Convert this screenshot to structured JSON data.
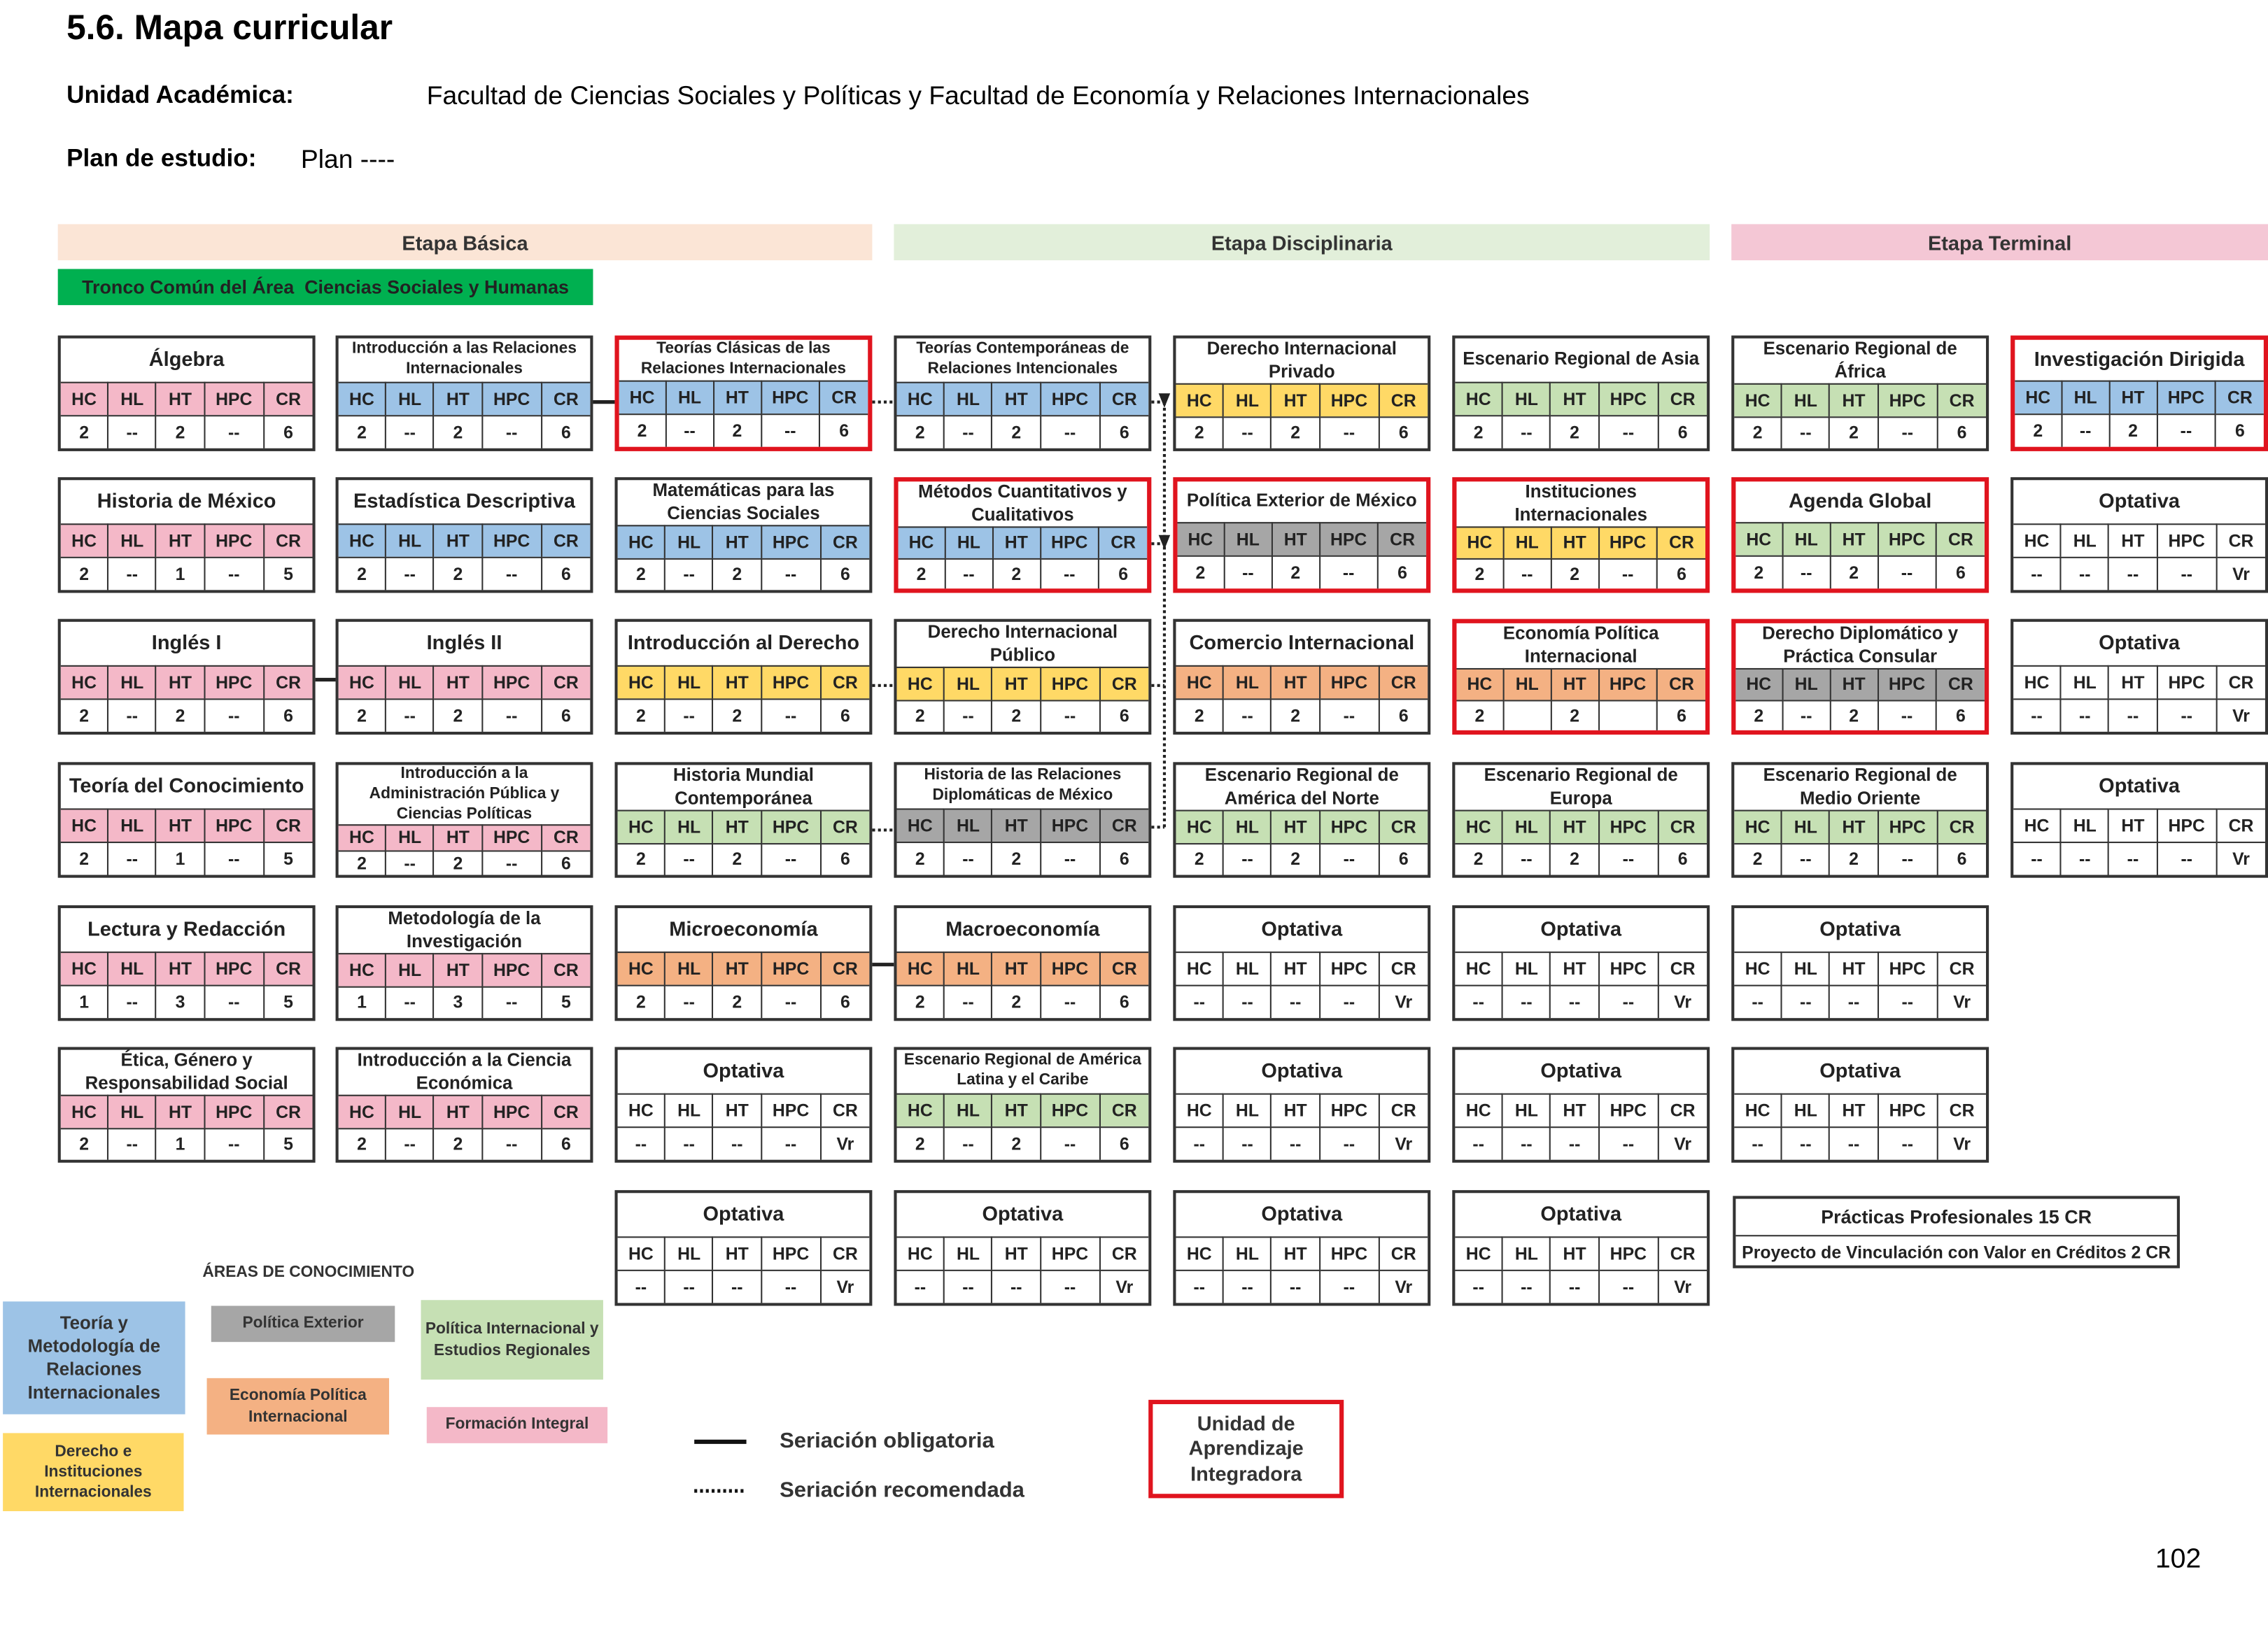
{
  "header": {
    "title": "5.6. Mapa curricular",
    "unit_label": "Unidad Académica:",
    "unit": "Facultad de Ciencias Sociales y Políticas y Facultad de Economía y Relaciones Internacionales",
    "plan_label": "Plan de estudio:",
    "plan": "Plan ----"
  },
  "stages": [
    "Etapa Básica",
    "Etapa Disciplinaria",
    "Etapa Terminal"
  ],
  "common_trunk": "Tronco Común del Área  Ciencias Sociales y Humanas",
  "hour_labels": [
    "HC",
    "HL",
    "HT",
    "HPC",
    "CR"
  ],
  "columns": [
    [
      {
        "name": "Álgebra",
        "color": "#f4b8c8",
        "values": [
          2,
          "--",
          2,
          "--",
          6
        ]
      },
      {
        "name": "Historia de México",
        "color": "#f4b8c8",
        "values": [
          2,
          "--",
          1,
          "--",
          5
        ]
      },
      {
        "name": "Inglés I",
        "color": "#f4b8c8",
        "values": [
          2,
          "--",
          2,
          "--",
          6
        ]
      },
      {
        "name": "Teoría del Conocimiento",
        "color": "#f4b8c8",
        "values": [
          2,
          "--",
          1,
          "--",
          5
        ]
      },
      {
        "name": "Lectura y Redacción",
        "color": "#f4b8c8",
        "values": [
          1,
          "--",
          3,
          "--",
          5
        ]
      },
      {
        "name": "Ética, Género y Responsabilidad Social",
        "color": "#f4b8c8",
        "values": [
          2,
          "--",
          1,
          "--",
          5
        ]
      }
    ],
    [
      {
        "name": "Introducción a las Relaciones Internacionales",
        "color": "#9dc3e6",
        "values": [
          2,
          "--",
          2,
          "--",
          6
        ]
      },
      {
        "name": "Estadística Descriptiva",
        "color": "#9dc3e6",
        "values": [
          2,
          "--",
          2,
          "--",
          6
        ]
      },
      {
        "name": "Inglés II",
        "color": "#f4b8c8",
        "values": [
          2,
          "--",
          2,
          "--",
          6
        ]
      },
      {
        "name": "Introducción a la Administración Pública y Ciencias Políticas",
        "color": "#f4b8c8",
        "values": [
          2,
          "--",
          2,
          "--",
          6
        ]
      },
      {
        "name": "Metodología de la Investigación",
        "color": "#f4b8c8",
        "values": [
          1,
          "--",
          3,
          "--",
          5
        ]
      },
      {
        "name": "Introducción a la Ciencia Económica",
        "color": "#f4b8c8",
        "values": [
          2,
          "--",
          2,
          "--",
          6
        ]
      }
    ],
    [
      {
        "name": "Teorías Clásicas de las Relaciones Internacionales",
        "color": "#9dc3e6",
        "integrator": true,
        "values": [
          2,
          "--",
          2,
          "--",
          6
        ]
      },
      {
        "name": "Matemáticas para las Ciencias Sociales",
        "color": "#9dc3e6",
        "values": [
          2,
          "--",
          2,
          "--",
          6
        ]
      },
      {
        "name": "Introducción al Derecho",
        "color": "#ffd966",
        "values": [
          2,
          "--",
          2,
          "--",
          6
        ]
      },
      {
        "name": "Historia Mundial Contemporánea",
        "color": "#c6e0b4",
        "values": [
          2,
          "--",
          2,
          "--",
          6
        ]
      },
      {
        "name": "Microeconomía",
        "color": "#f4b183",
        "values": [
          2,
          "--",
          2,
          "--",
          6
        ]
      },
      {
        "name": "Optativa",
        "color": "#ffffff",
        "values": [
          "--",
          "--",
          "--",
          "--",
          "Vr"
        ]
      },
      {
        "name": "Optativa",
        "color": "#ffffff",
        "values": [
          "--",
          "--",
          "--",
          "--",
          "Vr"
        ]
      }
    ],
    [
      {
        "name": "Teorías Contemporáneas de Relaciones Intencionales",
        "color": "#9dc3e6",
        "values": [
          2,
          "--",
          2,
          "--",
          6
        ]
      },
      {
        "name": "Métodos Cuantitativos y Cualitativos",
        "color": "#9dc3e6",
        "integrator": true,
        "values": [
          2,
          "--",
          2,
          "--",
          6
        ]
      },
      {
        "name": "Derecho Internacional Público",
        "color": "#ffd966",
        "values": [
          2,
          "--",
          2,
          "--",
          6
        ]
      },
      {
        "name": "Historia de las Relaciones Diplomáticas de México",
        "color": "#a6a6a6",
        "values": [
          2,
          "--",
          2,
          "--",
          6
        ]
      },
      {
        "name": "Macroeconomía",
        "color": "#f4b183",
        "values": [
          2,
          "--",
          2,
          "--",
          6
        ]
      },
      {
        "name": "Escenario Regional de América Latina y el Caribe",
        "color": "#c6e0b4",
        "values": [
          2,
          "--",
          2,
          "--",
          6
        ]
      },
      {
        "name": "Optativa",
        "color": "#ffffff",
        "values": [
          "--",
          "--",
          "--",
          "--",
          "Vr"
        ]
      }
    ],
    [
      {
        "name": "Derecho Internacional Privado",
        "color": "#ffd966",
        "values": [
          2,
          "--",
          2,
          "--",
          6
        ]
      },
      {
        "name": "Política Exterior de México",
        "color": "#a6a6a6",
        "integrator": true,
        "values": [
          2,
          "--",
          2,
          "--",
          6
        ]
      },
      {
        "name": "Comercio Internacional",
        "color": "#f4b183",
        "values": [
          2,
          "--",
          2,
          "--",
          6
        ]
      },
      {
        "name": "Escenario Regional de América del Norte",
        "color": "#c6e0b4",
        "values": [
          2,
          "--",
          2,
          "--",
          6
        ]
      },
      {
        "name": "Optativa",
        "color": "#ffffff",
        "values": [
          "--",
          "--",
          "--",
          "--",
          "Vr"
        ]
      },
      {
        "name": "Optativa",
        "color": "#ffffff",
        "values": [
          "--",
          "--",
          "--",
          "--",
          "Vr"
        ]
      },
      {
        "name": "Optativa",
        "color": "#ffffff",
        "values": [
          "--",
          "--",
          "--",
          "--",
          "Vr"
        ]
      }
    ],
    [
      {
        "name": "Escenario Regional de Asia",
        "color": "#c6e0b4",
        "values": [
          2,
          "--",
          2,
          "--",
          6
        ]
      },
      {
        "name": "Instituciones Internacionales",
        "color": "#ffd966",
        "integrator": true,
        "values": [
          2,
          "--",
          2,
          "--",
          6
        ]
      },
      {
        "name": "Economía Política Internacional",
        "color": "#f4b183",
        "integrator": true,
        "values": [
          2,
          null,
          2,
          null,
          6
        ]
      },
      {
        "name": "Escenario Regional de Europa",
        "color": "#c6e0b4",
        "values": [
          2,
          "--",
          2,
          "--",
          6
        ]
      },
      {
        "name": "Optativa",
        "color": "#ffffff",
        "values": [
          "--",
          "--",
          "--",
          "--",
          "Vr"
        ]
      },
      {
        "name": "Optativa",
        "color": "#ffffff",
        "values": [
          "--",
          "--",
          "--",
          "--",
          "Vr"
        ]
      },
      {
        "name": "Optativa",
        "color": "#ffffff",
        "values": [
          "--",
          "--",
          "--",
          "--",
          "Vr"
        ]
      }
    ],
    [
      {
        "name": "Escenario Regional de África",
        "color": "#c6e0b4",
        "values": [
          2,
          "--",
          2,
          "--",
          6
        ]
      },
      {
        "name": "Agenda Global",
        "color": "#c6e0b4",
        "integrator": true,
        "values": [
          2,
          "--",
          2,
          "--",
          6
        ]
      },
      {
        "name": "Derecho Diplomático y Práctica Consular",
        "color": "#a6a6a6",
        "integrator": true,
        "values": [
          2,
          "--",
          2,
          "--",
          6
        ]
      },
      {
        "name": "Escenario Regional de Medio Oriente",
        "color": "#c6e0b4",
        "values": [
          2,
          "--",
          2,
          "--",
          6
        ]
      },
      {
        "name": "Optativa",
        "color": "#ffffff",
        "values": [
          "--",
          "--",
          "--",
          "--",
          "Vr"
        ]
      },
      {
        "name": "Optativa",
        "color": "#ffffff",
        "values": [
          "--",
          "--",
          "--",
          "--",
          "Vr"
        ]
      }
    ],
    [
      {
        "name": "Investigación Dirigida",
        "color": "#9dc3e6",
        "integrator": true,
        "values": [
          2,
          "--",
          2,
          "--",
          6
        ]
      },
      {
        "name": "Optativa",
        "color": "#ffffff",
        "values": [
          "--",
          "--",
          "--",
          "--",
          "Vr"
        ]
      },
      {
        "name": "Optativa",
        "color": "#ffffff",
        "values": [
          "--",
          "--",
          "--",
          "--",
          "Vr"
        ]
      },
      {
        "name": "Optativa",
        "color": "#ffffff",
        "values": [
          "--",
          "--",
          "--",
          "--",
          "Vr"
        ]
      }
    ]
  ],
  "practices": [
    "Prácticas Profesionales 15 CR",
    "Proyecto de Vinculación con Valor en Créditos 2 CR"
  ],
  "legend": {
    "title": "ÁREAS DE CONOCIMIENTO",
    "areas": [
      {
        "label": "Teoría y Metodología de Relaciones Internacionales",
        "color": "#9dc3e6"
      },
      {
        "label": "Política Exterior",
        "color": "#a6a6a6"
      },
      {
        "label": "Política Internacional y Estudios Regionales",
        "color": "#c6e0b4"
      },
      {
        "label": "Economía Política Internacional",
        "color": "#f4b183"
      },
      {
        "label": "Formación Integral",
        "color": "#f4b8c8"
      },
      {
        "label": "Derecho e Instituciones Internacionales",
        "color": "#ffd966"
      }
    ],
    "seriation": [
      "Seriación obligatoria",
      "Seriación recomendada"
    ],
    "integrator": "Unidad de Aprendizaje Integradora"
  },
  "page_number": 102
}
